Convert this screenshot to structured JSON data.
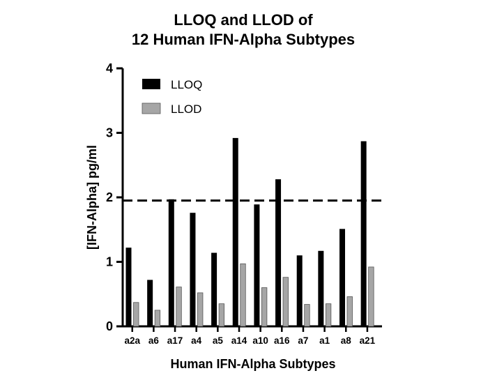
{
  "chart_data": {
    "type": "bar",
    "title_lines": [
      "LLOQ and LLOD of",
      "12 Human IFN-Alpha Subtypes"
    ],
    "xlabel": "Human IFN-Alpha Subtypes",
    "ylabel": "[IFN-Alpha] pg/ml",
    "ylim": [
      0,
      4
    ],
    "yticks": [
      "0",
      "1",
      "2",
      "3",
      "4"
    ],
    "categories": [
      "a2a",
      "a6",
      "a17",
      "a4",
      "a5",
      "a14",
      "a10",
      "a16",
      "a7",
      "a1",
      "a8",
      "a21"
    ],
    "series": [
      {
        "name": "LLOQ",
        "color": "#000000",
        "values": [
          1.22,
          0.72,
          1.97,
          1.76,
          1.14,
          2.92,
          1.89,
          2.28,
          1.1,
          1.17,
          1.51,
          2.87
        ]
      },
      {
        "name": "LLOD",
        "color": "#a6a6a6",
        "values": [
          0.37,
          0.25,
          0.61,
          0.52,
          0.35,
          0.97,
          0.6,
          0.76,
          0.34,
          0.35,
          0.46,
          0.92
        ]
      }
    ],
    "reference_line": {
      "value": 1.95,
      "style": "dashed"
    },
    "legend_position": "top-left",
    "grid": false
  }
}
